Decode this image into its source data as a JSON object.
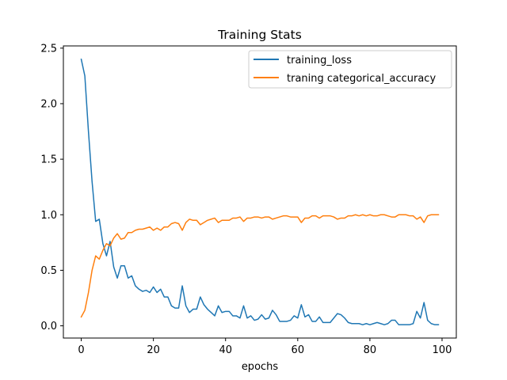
{
  "chart_data": {
    "type": "line",
    "title": "Training Stats",
    "xlabel": "epochs",
    "ylabel": "",
    "xlim": [
      -4.95,
      103.95
    ],
    "ylim": [
      -0.11,
      2.52
    ],
    "xticks": [
      0,
      20,
      40,
      60,
      80,
      100
    ],
    "yticks": [
      0.0,
      0.5,
      1.0,
      1.5,
      2.0,
      2.5
    ],
    "xtick_labels": [
      "0",
      "20",
      "40",
      "60",
      "80",
      "100"
    ],
    "ytick_labels": [
      "0.0",
      "0.5",
      "1.0",
      "1.5",
      "2.0",
      "2.5"
    ],
    "grid": false,
    "legend_position": "upper right",
    "x": [
      0,
      1,
      2,
      3,
      4,
      5,
      6,
      7,
      8,
      9,
      10,
      11,
      12,
      13,
      14,
      15,
      16,
      17,
      18,
      19,
      20,
      21,
      22,
      23,
      24,
      25,
      26,
      27,
      28,
      29,
      30,
      31,
      32,
      33,
      34,
      35,
      36,
      37,
      38,
      39,
      40,
      41,
      42,
      43,
      44,
      45,
      46,
      47,
      48,
      49,
      50,
      51,
      52,
      53,
      54,
      55,
      56,
      57,
      58,
      59,
      60,
      61,
      62,
      63,
      64,
      65,
      66,
      67,
      68,
      69,
      70,
      71,
      72,
      73,
      74,
      75,
      76,
      77,
      78,
      79,
      80,
      81,
      82,
      83,
      84,
      85,
      86,
      87,
      88,
      89,
      90,
      91,
      92,
      93,
      94,
      95,
      96,
      97,
      98,
      99
    ],
    "series": [
      {
        "name": "training_loss",
        "color": "#1f77b4",
        "values": [
          2.4,
          2.25,
          1.75,
          1.3,
          0.94,
          0.96,
          0.74,
          0.63,
          0.76,
          0.53,
          0.43,
          0.54,
          0.54,
          0.43,
          0.45,
          0.36,
          0.33,
          0.31,
          0.32,
          0.3,
          0.35,
          0.3,
          0.33,
          0.26,
          0.26,
          0.18,
          0.16,
          0.16,
          0.36,
          0.18,
          0.12,
          0.15,
          0.15,
          0.26,
          0.19,
          0.15,
          0.12,
          0.09,
          0.18,
          0.12,
          0.13,
          0.13,
          0.09,
          0.09,
          0.07,
          0.18,
          0.07,
          0.09,
          0.05,
          0.06,
          0.1,
          0.06,
          0.07,
          0.14,
          0.1,
          0.04,
          0.04,
          0.04,
          0.05,
          0.09,
          0.07,
          0.19,
          0.08,
          0.1,
          0.04,
          0.04,
          0.08,
          0.03,
          0.03,
          0.03,
          0.07,
          0.11,
          0.1,
          0.07,
          0.03,
          0.02,
          0.02,
          0.02,
          0.01,
          0.02,
          0.01,
          0.02,
          0.03,
          0.02,
          0.01,
          0.02,
          0.05,
          0.05,
          0.01,
          0.01,
          0.01,
          0.01,
          0.02,
          0.13,
          0.07,
          0.21,
          0.05,
          0.02,
          0.01,
          0.01
        ]
      },
      {
        "name": "traning categorical_accuracy",
        "color": "#ff7f0e",
        "values": [
          0.08,
          0.14,
          0.3,
          0.5,
          0.63,
          0.6,
          0.68,
          0.74,
          0.72,
          0.79,
          0.83,
          0.78,
          0.79,
          0.84,
          0.84,
          0.86,
          0.87,
          0.87,
          0.88,
          0.89,
          0.86,
          0.88,
          0.86,
          0.89,
          0.89,
          0.92,
          0.93,
          0.92,
          0.86,
          0.93,
          0.96,
          0.95,
          0.95,
          0.91,
          0.93,
          0.95,
          0.96,
          0.97,
          0.93,
          0.95,
          0.95,
          0.95,
          0.97,
          0.97,
          0.98,
          0.94,
          0.97,
          0.97,
          0.98,
          0.98,
          0.97,
          0.98,
          0.98,
          0.96,
          0.97,
          0.98,
          0.99,
          0.99,
          0.98,
          0.98,
          0.98,
          0.93,
          0.97,
          0.97,
          0.99,
          0.99,
          0.97,
          0.99,
          0.99,
          0.99,
          0.98,
          0.96,
          0.97,
          0.97,
          0.99,
          0.99,
          1.0,
          0.99,
          1.0,
          0.99,
          1.0,
          0.99,
          0.99,
          1.0,
          1.0,
          0.99,
          0.98,
          0.98,
          1.0,
          1.0,
          1.0,
          0.99,
          0.99,
          0.96,
          0.98,
          0.93,
          0.99,
          1.0,
          1.0,
          1.0
        ]
      }
    ]
  }
}
